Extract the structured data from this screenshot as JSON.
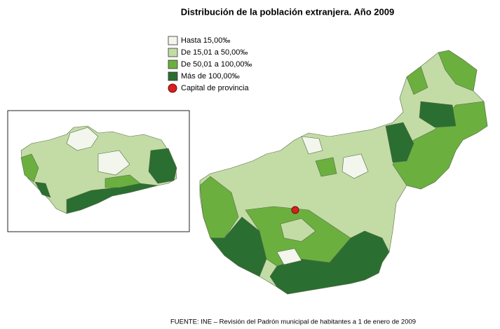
{
  "title": "Distribución de la población extranjera. Año 2009",
  "legend": [
    {
      "label": "Hasta 15,00‰",
      "color": "#f2f6ec"
    },
    {
      "label": "De 15,01 a 50,00‰",
      "color": "#c3dca6"
    },
    {
      "label": "De 50,01 a 100,00‰",
      "color": "#6bb03f"
    },
    {
      "label": "Más de 100,00‰",
      "color": "#2b6e31"
    },
    {
      "label": "Capital de provincia",
      "color": "#d9201c"
    }
  ],
  "source": "FUENTE: INE – Revisión del Padrón municipal de habitantes a 1 de enero de 2009"
}
